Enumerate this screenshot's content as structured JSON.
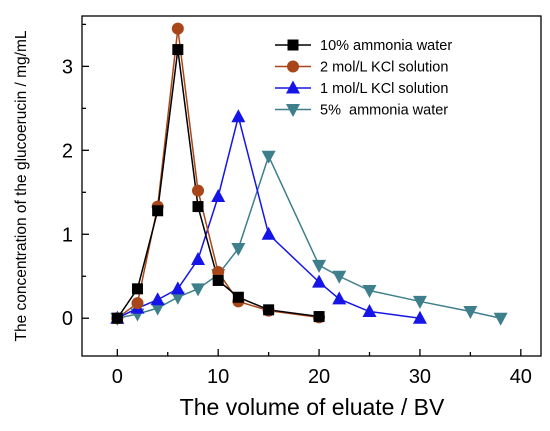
{
  "chart_data": {
    "type": "line",
    "title": "",
    "xlabel": "The volume of eluate / BV",
    "ylabel": "The concentration of the glucoerucin / mg/mL",
    "xlim": [
      -3.5,
      42
    ],
    "ylim": [
      -0.45,
      3.6
    ],
    "xticks": [
      0,
      10,
      20,
      30,
      40
    ],
    "yticks": [
      0,
      1,
      2,
      3
    ],
    "grid": false,
    "legend_position": "top-right",
    "series": [
      {
        "name": "10% ammonia water",
        "marker": "square",
        "color": "#000000",
        "line_color": "#000000",
        "x": [
          0,
          2,
          4,
          6,
          8,
          10,
          12,
          15,
          20
        ],
        "y": [
          0.0,
          0.35,
          1.28,
          3.2,
          1.33,
          0.45,
          0.25,
          0.1,
          0.02
        ]
      },
      {
        "name": "2 mol/L KCl solution",
        "marker": "circle",
        "color": "#a8461a",
        "line_color": "#a8461a",
        "x": [
          0,
          2,
          4,
          6,
          8,
          10,
          12,
          15,
          20
        ],
        "y": [
          0.0,
          0.18,
          1.33,
          3.45,
          1.52,
          0.55,
          0.2,
          0.09,
          0.01
        ]
      },
      {
        "name": "1 mol/L KCl solution",
        "marker": "triangle-up",
        "color": "#1515e8",
        "line_color": "#1515e8",
        "x": [
          0,
          2,
          4,
          6,
          8,
          10,
          12,
          15,
          20,
          22,
          25,
          30
        ],
        "y": [
          0.0,
          0.12,
          0.22,
          0.35,
          0.7,
          1.45,
          2.4,
          1.0,
          0.43,
          0.23,
          0.08,
          0.0
        ]
      },
      {
        "name": "5%  ammonia water",
        "marker": "triangle-down",
        "color": "#3e7f8c",
        "line_color": "#3e7f8c",
        "x": [
          0,
          2,
          4,
          6,
          8,
          10,
          12,
          15,
          20,
          22,
          25,
          30,
          35,
          38
        ],
        "y": [
          0.0,
          0.05,
          0.12,
          0.25,
          0.35,
          0.52,
          0.83,
          1.93,
          0.63,
          0.5,
          0.33,
          0.2,
          0.08,
          0.0
        ]
      }
    ]
  }
}
